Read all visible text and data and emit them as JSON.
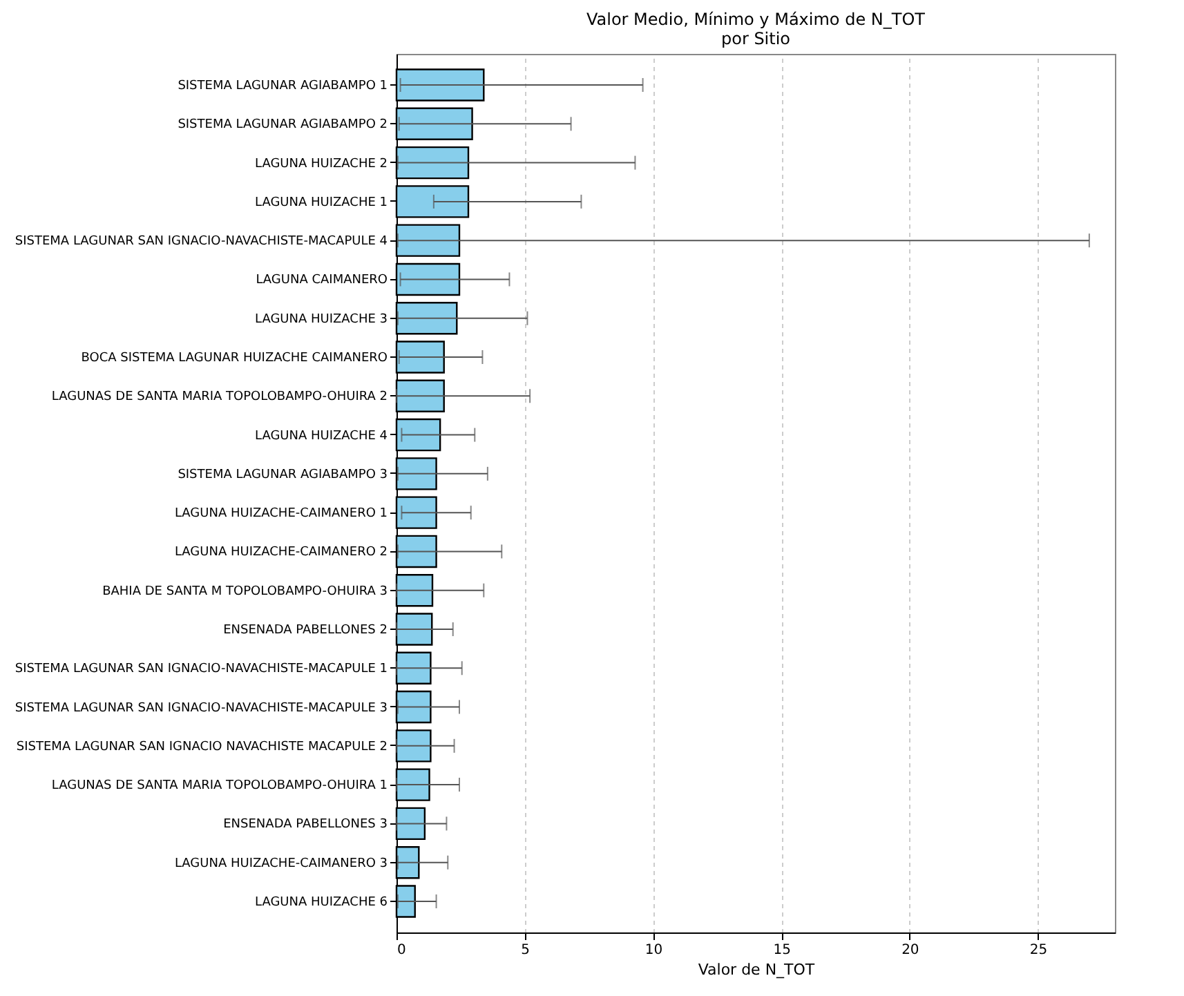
{
  "chart_data": {
    "type": "bar",
    "orientation": "horizontal",
    "title": "Valor Medio, Mínimo y Máximo de N_TOT\npor Sitio",
    "xlabel": "Valor de N_TOT",
    "categories": [
      "SISTEMA LAGUNAR AGIABAMPO 1",
      "SISTEMA LAGUNAR AGIABAMPO 2",
      "LAGUNA HUIZACHE 2",
      "LAGUNA HUIZACHE 1",
      "SISTEMA LAGUNAR SAN IGNACIO-NAVACHISTE-MACAPULE 4",
      "LAGUNA CAIMANERO",
      "LAGUNA HUIZACHE 3",
      "BOCA SISTEMA LAGUNAR HUIZACHE CAIMANERO",
      "LAGUNAS DE SANTA MARIA TOPOLOBAMPO-OHUIRA 2",
      "LAGUNA HUIZACHE 4",
      "SISTEMA LAGUNAR AGIABAMPO 3",
      "LAGUNA HUIZACHE-CAIMANERO 1",
      "LAGUNA HUIZACHE-CAIMANERO 2",
      "BAHIA DE SANTA M TOPOLOBAMPO-OHUIRA 3",
      "ENSENADA PABELLONES 2",
      "SISTEMA LAGUNAR SAN IGNACIO-NAVACHISTE-MACAPULE 1",
      "SISTEMA LAGUNAR SAN IGNACIO-NAVACHISTE-MACAPULE 3",
      "SISTEMA LAGUNAR SAN IGNACIO NAVACHISTE MACAPULE 2",
      "LAGUNAS DE SANTA MARIA TOPOLOBAMPO-OHUIRA 1",
      "ENSENADA PABELLONES 3",
      "LAGUNA HUIZACHE-CAIMANERO 3",
      "LAGUNA HUIZACHE 6"
    ],
    "series": [
      {
        "color": "#87ceeb",
        "values": [
          3.4,
          2.95,
          2.8,
          2.8,
          2.45,
          2.45,
          2.35,
          1.85,
          1.85,
          1.7,
          1.55,
          1.55,
          1.55,
          1.4,
          1.38,
          1.33,
          1.33,
          1.33,
          1.28,
          1.1,
          0.87,
          0.72
        ],
        "errors": [
          [
            0.15,
            9.6
          ],
          [
            0.1,
            6.8
          ],
          [
            0.05,
            9.3
          ],
          [
            1.45,
            7.2
          ],
          [
            0.05,
            27
          ],
          [
            0.15,
            4.4
          ],
          [
            0.05,
            5.1
          ],
          [
            0.1,
            3.35
          ],
          [
            0,
            5.2
          ],
          [
            0.2,
            3.05
          ],
          [
            0.05,
            3.55
          ],
          [
            0.2,
            2.9
          ],
          [
            0.05,
            4.1
          ],
          [
            0,
            3.4
          ],
          [
            0,
            2.2
          ],
          [
            0,
            2.55
          ],
          [
            0.05,
            2.45
          ],
          [
            0,
            2.25
          ],
          [
            0,
            2.45
          ],
          [
            0,
            1.95
          ],
          [
            0.05,
            2
          ],
          [
            0.05,
            1.55
          ]
        ]
      }
    ],
    "xlim": [
      0,
      28
    ],
    "xticks": [
      0,
      5,
      10,
      15,
      20,
      25
    ],
    "grid": "x"
  }
}
